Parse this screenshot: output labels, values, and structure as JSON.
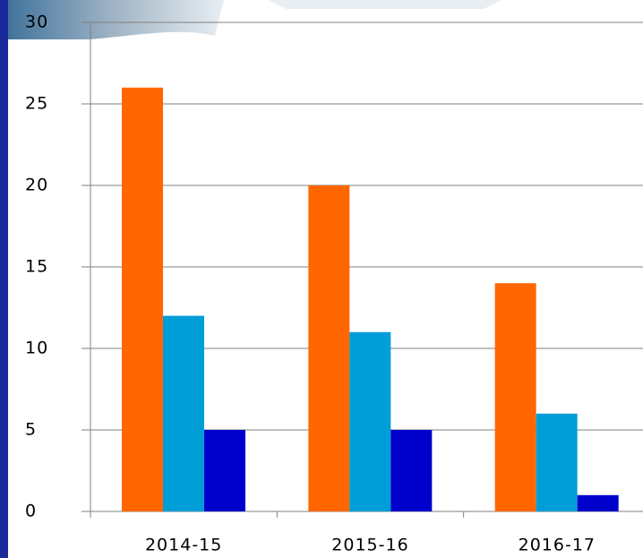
{
  "chart_data": {
    "type": "bar",
    "categories": [
      "2014-15",
      "2015-16",
      "2016-17"
    ],
    "series": [
      {
        "color": "#ff6600",
        "values": [
          26,
          20,
          14
        ]
      },
      {
        "color": "#009ed8",
        "values": [
          12,
          11,
          6
        ]
      },
      {
        "color": "#0000cc",
        "values": [
          5,
          5,
          1
        ]
      }
    ],
    "ylim": [
      0,
      30
    ],
    "yticks": [
      0,
      5,
      10,
      15,
      20,
      25,
      30
    ],
    "grid": true
  }
}
